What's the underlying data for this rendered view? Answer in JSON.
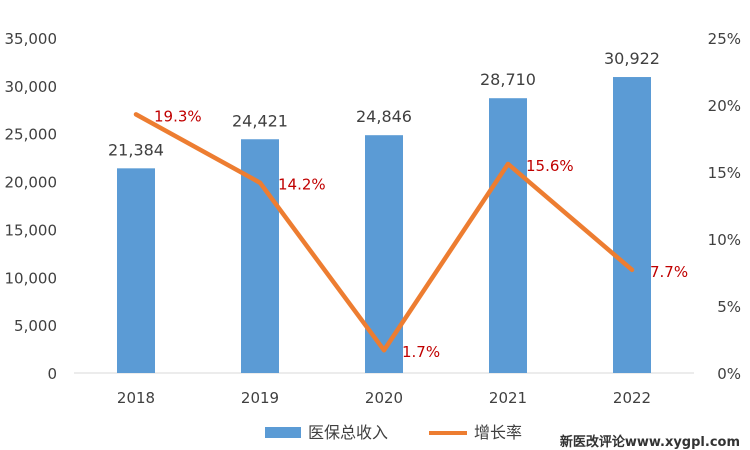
{
  "chart_data": {
    "type": "bar+line",
    "categories": [
      "2018",
      "2019",
      "2020",
      "2021",
      "2022"
    ],
    "series": [
      {
        "name": "医保总收入",
        "type": "bar",
        "axis": "left",
        "values": [
          21384,
          24421,
          24846,
          28710,
          30922
        ],
        "labels": [
          "21,384",
          "24,421",
          "24,846",
          "28,710",
          "30,922"
        ]
      },
      {
        "name": "增长率",
        "type": "line",
        "axis": "right",
        "values": [
          19.3,
          14.2,
          1.7,
          15.6,
          7.7
        ],
        "labels": [
          "19.3%",
          "14.2%",
          "1.7%",
          "15.6%",
          "7.7%"
        ]
      }
    ],
    "y_left": {
      "range": [
        0,
        35000
      ],
      "ticks": [
        0,
        5000,
        10000,
        15000,
        20000,
        25000,
        30000,
        35000
      ],
      "tick_labels": [
        "0",
        "5,000",
        "10,000",
        "15,000",
        "20,000",
        "25,000",
        "30,000",
        "35,000"
      ]
    },
    "y_right": {
      "range": [
        0,
        25
      ],
      "ticks": [
        0,
        5,
        10,
        15,
        20,
        25
      ],
      "tick_labels": [
        "0%",
        "5%",
        "10%",
        "15%",
        "20%",
        "25%"
      ]
    },
    "grid": false,
    "legend": "bottom",
    "colors": {
      "bar": "#5b9bd5",
      "line": "#ed7d31",
      "rate_label": "#c00000"
    }
  },
  "watermark": "新医改评论www.xygpl.com"
}
